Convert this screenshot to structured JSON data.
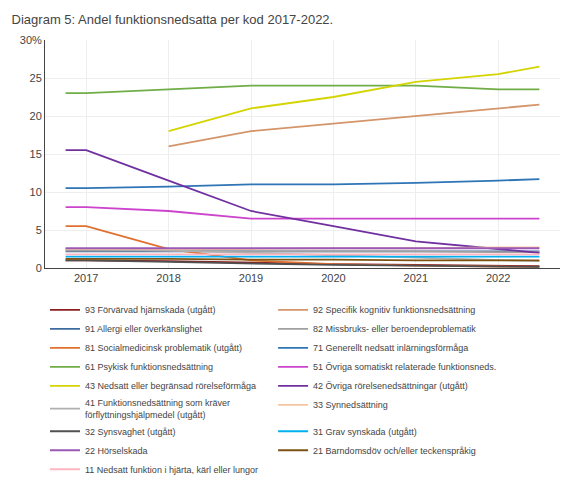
{
  "chart_data": {
    "type": "line",
    "title": "Diagram 5: Andel funktionsnedsatta per kod 2017-2022.",
    "x": [
      2016.75,
      2017,
      2018,
      2019,
      2020,
      2021,
      2022,
      2022.5
    ],
    "xlim": [
      2016.5,
      2022.75
    ],
    "xticks": [
      2017,
      2018,
      2019,
      2020,
      2021,
      2022
    ],
    "ylim": [
      0,
      30
    ],
    "yticks": [
      0,
      5,
      10,
      15,
      20,
      25,
      {
        "value": 30,
        "label": "30%"
      }
    ],
    "grid": true,
    "legend": "bottom",
    "series": [
      {
        "name": "93 Förvärvad hjärnskada (utgått)",
        "color": "#8B2020",
        "values": [
          1.0,
          1.0,
          0.9,
          0.7,
          0.5,
          0.4,
          0.3,
          0.25
        ]
      },
      {
        "name": "92 Specifik kognitiv funktionsnedsättning",
        "color": "#D4956A",
        "values": [
          null,
          null,
          16.0,
          18.0,
          19.0,
          20.0,
          21.0,
          21.5
        ]
      },
      {
        "name": "91 Allergi eller överkänslighet",
        "color": "#3D6B9E",
        "values": [
          2.2,
          2.2,
          2.2,
          2.2,
          2.2,
          2.2,
          2.2,
          2.2
        ]
      },
      {
        "name": "82 Missbruks- eller beroendeproblematik",
        "color": "#A0A0A0",
        "values": [
          2.3,
          2.3,
          2.3,
          2.2,
          2.2,
          2.2,
          2.1,
          2.1
        ]
      },
      {
        "name": "81 Socialmedicinsk problematik (utgått)",
        "color": "#E07030",
        "values": [
          5.5,
          5.5,
          2.5,
          1.0,
          0.5,
          0.3,
          0.2,
          0.15
        ]
      },
      {
        "name": "71 Generellt nedsatt inlärningsförmåga",
        "color": "#2E75B6",
        "values": [
          10.5,
          10.5,
          10.7,
          11.0,
          11.0,
          11.2,
          11.5,
          11.7
        ]
      },
      {
        "name": "61 Psykisk funktionsnedsättning",
        "color": "#70AD47",
        "values": [
          23.0,
          23.0,
          23.5,
          24.0,
          24.0,
          24.0,
          23.5,
          23.5
        ]
      },
      {
        "name": "51 Övriga somatiskt relaterade funktionsneds.",
        "color": "#CC44CC",
        "values": [
          8.0,
          8.0,
          7.5,
          6.5,
          6.5,
          6.5,
          6.5,
          6.5
        ]
      },
      {
        "name": "43 Nedsatt eller begränsad rörelseförmåga",
        "color": "#D4D400",
        "values": [
          null,
          null,
          18.0,
          21.0,
          22.5,
          24.5,
          25.5,
          26.5
        ]
      },
      {
        "name": "42 Övriga rörelsenedsättningar (utgått)",
        "color": "#7030A0",
        "values": [
          15.5,
          15.5,
          11.5,
          7.5,
          5.5,
          3.5,
          2.5,
          2.0
        ]
      },
      {
        "name": "41 Funktionsnedsättning som kräver\nförflyttningshjälpmedel (utgått)",
        "color": "#B0B0B0",
        "values": [
          2.5,
          2.5,
          2.3,
          2.0,
          1.7,
          1.4,
          1.1,
          0.9
        ]
      },
      {
        "name": "33 Synnedsättning",
        "color": "#F5C5A0",
        "values": [
          2.5,
          2.5,
          2.5,
          2.5,
          2.6,
          2.6,
          2.7,
          2.7
        ]
      },
      {
        "name": "32 Synsvaghet (utgått)",
        "color": "#505050",
        "values": [
          1.0,
          1.0,
          0.8,
          0.6,
          0.4,
          0.3,
          0.2,
          0.15
        ]
      },
      {
        "name": "31 Grav synskada (utgått)",
        "color": "#00B0F0",
        "values": [
          1.5,
          1.5,
          1.5,
          1.5,
          1.5,
          1.5,
          1.5,
          1.5
        ]
      },
      {
        "name": "22 Hörselskada",
        "color": "#9B59B6",
        "values": [
          2.6,
          2.6,
          2.6,
          2.6,
          2.6,
          2.6,
          2.6,
          2.6
        ]
      },
      {
        "name": "21 Barndomsdöv och/eller teckenspråkig",
        "color": "#7B5213",
        "values": [
          1.2,
          1.2,
          1.2,
          1.1,
          1.1,
          1.0,
          1.0,
          1.0
        ]
      },
      {
        "name": "11 Nedsatt funktion i hjärta, kärl eller lungor",
        "color": "#FFB6C1",
        "values": [
          1.8,
          1.8,
          1.8,
          1.8,
          1.8,
          1.8,
          1.8,
          1.8
        ]
      }
    ]
  }
}
